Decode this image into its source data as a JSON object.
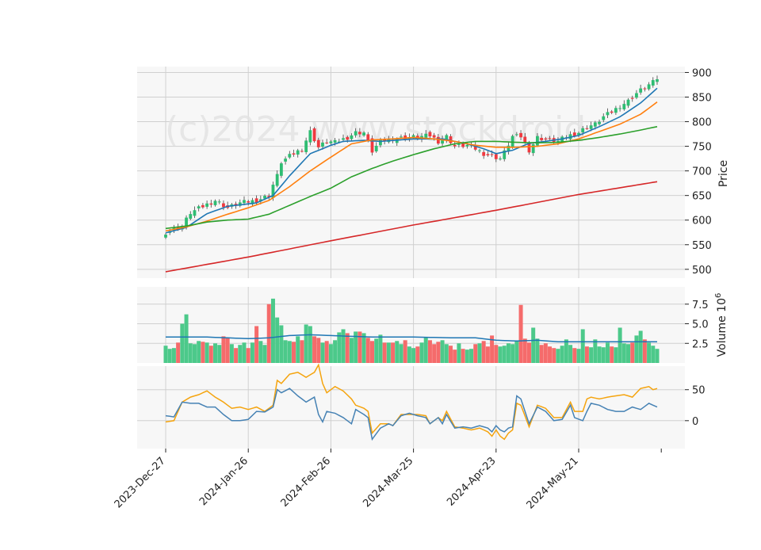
{
  "watermark": "(c)2024 www.stockdroid",
  "colors": {
    "up": "#2ebd72",
    "down": "#f0393f",
    "up_vol": "#4cc98a",
    "down_vol": "#f56b6b",
    "ma_short": "#1f77b4",
    "ma_mid": "#ff7f0e",
    "ma_long": "#2ca02c",
    "ma_200": "#d62728",
    "vol_ma": "#1f77b4",
    "osc1": "#4682b4",
    "osc2": "#f5a40e",
    "panel_bg": "#f7f7f7",
    "grid": "#d0d0d0"
  },
  "chart_data": {
    "type": "candlestick",
    "x_tick_labels": [
      "2023-Dec-27",
      "2024-Jan-26",
      "2024-Feb-26",
      "2024-Mar-25",
      "2024-Apr-23",
      "2024-May-21"
    ],
    "x_tick_index": [
      0,
      20,
      40,
      60,
      80,
      100
    ],
    "num_bars": 120,
    "price_panel": {
      "ylabel": "Price",
      "ylim": [
        482,
        912
      ],
      "yticks": [
        500,
        550,
        600,
        650,
        700,
        750,
        800,
        850,
        900
      ],
      "close_anchors": [
        [
          0,
          575
        ],
        [
          4,
          588
        ],
        [
          6,
          615
        ],
        [
          10,
          632
        ],
        [
          12,
          640
        ],
        [
          15,
          625
        ],
        [
          18,
          635
        ],
        [
          22,
          640
        ],
        [
          25,
          650
        ],
        [
          26,
          672
        ],
        [
          27,
          690
        ],
        [
          28,
          718
        ],
        [
          30,
          730
        ],
        [
          33,
          745
        ],
        [
          35,
          780
        ],
        [
          37,
          748
        ],
        [
          39,
          760
        ],
        [
          41,
          758
        ],
        [
          44,
          768
        ],
        [
          46,
          778
        ],
        [
          48,
          778
        ],
        [
          50,
          740
        ],
        [
          52,
          760
        ],
        [
          55,
          765
        ],
        [
          58,
          768
        ],
        [
          62,
          770
        ],
        [
          64,
          772
        ],
        [
          66,
          760
        ],
        [
          68,
          770
        ],
        [
          70,
          750
        ],
        [
          73,
          752
        ],
        [
          75,
          745
        ],
        [
          77,
          735
        ],
        [
          79,
          730
        ],
        [
          81,
          725
        ],
        [
          82,
          738
        ],
        [
          84,
          770
        ],
        [
          86,
          770
        ],
        [
          88,
          742
        ],
        [
          90,
          768
        ],
        [
          93,
          762
        ],
        [
          95,
          760
        ],
        [
          97,
          770
        ],
        [
          100,
          778
        ],
        [
          102,
          790
        ],
        [
          104,
          795
        ],
        [
          106,
          810
        ],
        [
          108,
          820
        ],
        [
          110,
          832
        ],
        [
          112,
          842
        ],
        [
          114,
          858
        ],
        [
          116,
          870
        ],
        [
          118,
          880
        ],
        [
          119,
          888
        ]
      ],
      "ma_series": [
        {
          "name": "ma_short",
          "anchors": [
            [
              0,
              574
            ],
            [
              5,
              585
            ],
            [
              10,
              613
            ],
            [
              15,
              628
            ],
            [
              22,
              635
            ],
            [
              26,
              650
            ],
            [
              30,
              690
            ],
            [
              35,
              735
            ],
            [
              40,
              752
            ],
            [
              43,
              760
            ],
            [
              48,
              762
            ],
            [
              52,
              760
            ],
            [
              60,
              765
            ],
            [
              67,
              765
            ],
            [
              73,
              755
            ],
            [
              77,
              745
            ],
            [
              80,
              735
            ],
            [
              84,
              742
            ],
            [
              88,
              756
            ],
            [
              92,
              760
            ],
            [
              96,
              765
            ],
            [
              100,
              772
            ],
            [
              105,
              790
            ],
            [
              110,
              810
            ],
            [
              115,
              838
            ],
            [
              119,
              868
            ]
          ]
        },
        {
          "name": "ma_mid",
          "anchors": [
            [
              0,
              578
            ],
            [
              5,
              586
            ],
            [
              10,
              598
            ],
            [
              15,
              612
            ],
            [
              20,
              625
            ],
            [
              25,
              640
            ],
            [
              30,
              668
            ],
            [
              35,
              700
            ],
            [
              40,
              728
            ],
            [
              45,
              755
            ],
            [
              50,
              763
            ],
            [
              55,
              765
            ],
            [
              60,
              768
            ],
            [
              65,
              765
            ],
            [
              70,
              760
            ],
            [
              75,
              752
            ],
            [
              80,
              748
            ],
            [
              85,
              748
            ],
            [
              90,
              750
            ],
            [
              95,
              755
            ],
            [
              100,
              765
            ],
            [
              105,
              780
            ],
            [
              110,
              795
            ],
            [
              115,
              815
            ],
            [
              119,
              840
            ]
          ]
        },
        {
          "name": "ma_long",
          "anchors": [
            [
              0,
              583
            ],
            [
              5,
              588
            ],
            [
              10,
              596
            ],
            [
              15,
              600
            ],
            [
              20,
              602
            ],
            [
              25,
              612
            ],
            [
              30,
              630
            ],
            [
              35,
              648
            ],
            [
              40,
              665
            ],
            [
              45,
              688
            ],
            [
              50,
              705
            ],
            [
              55,
              720
            ],
            [
              60,
              733
            ],
            [
              65,
              745
            ],
            [
              70,
              755
            ],
            [
              75,
              760
            ],
            [
              80,
              760
            ],
            [
              85,
              758
            ],
            [
              90,
              757
            ],
            [
              95,
              758
            ],
            [
              100,
              762
            ],
            [
              105,
              768
            ],
            [
              110,
              775
            ],
            [
              115,
              783
            ],
            [
              119,
              790
            ]
          ]
        },
        {
          "name": "ma_200",
          "anchors": [
            [
              0,
              495
            ],
            [
              20,
              525
            ],
            [
              40,
              558
            ],
            [
              60,
              590
            ],
            [
              80,
              620
            ],
            [
              100,
              652
            ],
            [
              119,
              678
            ]
          ]
        }
      ]
    },
    "volume_panel": {
      "ylabel": "Volume  10^6",
      "ylim": [
        0,
        9.7
      ],
      "yticks": [
        2.5,
        5.0,
        7.5
      ],
      "ytick_labels": [
        "2.5",
        "5.0",
        "7.5"
      ],
      "volumes": [
        2.2,
        1.8,
        1.9,
        2.6,
        5.0,
        6.2,
        2.5,
        2.4,
        2.8,
        2.7,
        2.6,
        2.2,
        2.5,
        2.3,
        3.4,
        3.2,
        2.4,
        1.9,
        2.3,
        2.6,
        1.9,
        2.6,
        4.7,
        2.8,
        2.3,
        7.5,
        8.2,
        5.8,
        4.8,
        2.9,
        2.8,
        2.7,
        3.4,
        2.9,
        4.9,
        4.7,
        3.4,
        3.2,
        2.6,
        2.8,
        2.4,
        2.9,
        3.9,
        4.3,
        3.8,
        3.2,
        4.0,
        4.0,
        3.8,
        3.2,
        2.8,
        3.1,
        3.6,
        2.6,
        2.6,
        2.6,
        2.8,
        2.4,
        2.9,
        2.1,
        1.9,
        2.1,
        2.6,
        3.3,
        2.9,
        2.4,
        2.7,
        2.9,
        2.4,
        2.2,
        1.7,
        2.5,
        1.8,
        1.7,
        1.8,
        2.4,
        2.5,
        2.8,
        2.1,
        3.5,
        2.3,
        2.1,
        2.2,
        2.5,
        2.4,
        2.8,
        7.4,
        3.1,
        2.6,
        4.5,
        3.1,
        2.3,
        2.5,
        2.1,
        1.9,
        1.8,
        2.2,
        3.0,
        2.3,
        1.9,
        1.8,
        4.3,
        2.1,
        2.0,
        3.0,
        2.1,
        2.0,
        2.6,
        2.1,
        2.0,
        4.5,
        2.5,
        2.4,
        2.6,
        3.5,
        4.1,
        3.0,
        2.6,
        2.2,
        1.8
      ],
      "vol_ma_anchors": [
        [
          0,
          3.3
        ],
        [
          10,
          3.3
        ],
        [
          20,
          3.1
        ],
        [
          25,
          3.2
        ],
        [
          30,
          3.5
        ],
        [
          35,
          3.6
        ],
        [
          40,
          3.5
        ],
        [
          45,
          3.4
        ],
        [
          50,
          3.3
        ],
        [
          60,
          3.3
        ],
        [
          70,
          3.2
        ],
        [
          75,
          3.2
        ],
        [
          80,
          2.9
        ],
        [
          85,
          2.8
        ],
        [
          90,
          2.9
        ],
        [
          95,
          2.7
        ],
        [
          100,
          2.7
        ],
        [
          110,
          2.7
        ],
        [
          119,
          2.7
        ]
      ]
    },
    "oscillator_panel": {
      "ylim": [
        -45,
        88
      ],
      "yticks": [
        0,
        50
      ],
      "series_1": [
        [
          0,
          8
        ],
        [
          2,
          6
        ],
        [
          4,
          30
        ],
        [
          6,
          28
        ],
        [
          8,
          28
        ],
        [
          10,
          22
        ],
        [
          12,
          22
        ],
        [
          14,
          10
        ],
        [
          16,
          0
        ],
        [
          18,
          0
        ],
        [
          20,
          2
        ],
        [
          22,
          15
        ],
        [
          24,
          14
        ],
        [
          26,
          22
        ],
        [
          27,
          50
        ],
        [
          28,
          45
        ],
        [
          30,
          52
        ],
        [
          32,
          40
        ],
        [
          34,
          30
        ],
        [
          36,
          38
        ],
        [
          37,
          10
        ],
        [
          38,
          -2
        ],
        [
          39,
          15
        ],
        [
          41,
          12
        ],
        [
          43,
          5
        ],
        [
          45,
          -5
        ],
        [
          46,
          18
        ],
        [
          48,
          10
        ],
        [
          49,
          5
        ],
        [
          50,
          -30
        ],
        [
          52,
          -12
        ],
        [
          54,
          -5
        ],
        [
          55,
          -8
        ],
        [
          57,
          8
        ],
        [
          59,
          12
        ],
        [
          61,
          8
        ],
        [
          63,
          5
        ],
        [
          64,
          -5
        ],
        [
          66,
          5
        ],
        [
          67,
          -5
        ],
        [
          68,
          10
        ],
        [
          70,
          -12
        ],
        [
          72,
          -10
        ],
        [
          74,
          -12
        ],
        [
          76,
          -8
        ],
        [
          78,
          -12
        ],
        [
          79,
          -18
        ],
        [
          80,
          -8
        ],
        [
          81,
          -15
        ],
        [
          82,
          -18
        ],
        [
          83,
          -12
        ],
        [
          84,
          -10
        ],
        [
          85,
          40
        ],
        [
          86,
          35
        ],
        [
          88,
          -5
        ],
        [
          90,
          22
        ],
        [
          92,
          15
        ],
        [
          94,
          0
        ],
        [
          96,
          2
        ],
        [
          98,
          25
        ],
        [
          99,
          5
        ],
        [
          101,
          0
        ],
        [
          102,
          15
        ],
        [
          103,
          28
        ],
        [
          105,
          25
        ],
        [
          107,
          18
        ],
        [
          109,
          15
        ],
        [
          111,
          15
        ],
        [
          113,
          22
        ],
        [
          115,
          18
        ],
        [
          117,
          28
        ],
        [
          118,
          25
        ],
        [
          119,
          22
        ]
      ],
      "series_2": [
        [
          0,
          -2
        ],
        [
          2,
          0
        ],
        [
          4,
          30
        ],
        [
          6,
          38
        ],
        [
          8,
          42
        ],
        [
          10,
          48
        ],
        [
          12,
          38
        ],
        [
          14,
          30
        ],
        [
          16,
          20
        ],
        [
          18,
          22
        ],
        [
          20,
          18
        ],
        [
          22,
          22
        ],
        [
          24,
          15
        ],
        [
          26,
          25
        ],
        [
          27,
          65
        ],
        [
          28,
          60
        ],
        [
          30,
          75
        ],
        [
          32,
          78
        ],
        [
          34,
          70
        ],
        [
          36,
          78
        ],
        [
          37,
          90
        ],
        [
          38,
          60
        ],
        [
          39,
          45
        ],
        [
          41,
          55
        ],
        [
          43,
          48
        ],
        [
          45,
          35
        ],
        [
          46,
          25
        ],
        [
          48,
          20
        ],
        [
          49,
          15
        ],
        [
          50,
          -20
        ],
        [
          52,
          -5
        ],
        [
          54,
          -5
        ],
        [
          55,
          -8
        ],
        [
          57,
          10
        ],
        [
          59,
          10
        ],
        [
          61,
          10
        ],
        [
          63,
          8
        ],
        [
          64,
          -5
        ],
        [
          66,
          5
        ],
        [
          67,
          0
        ],
        [
          68,
          15
        ],
        [
          70,
          -10
        ],
        [
          72,
          -12
        ],
        [
          74,
          -15
        ],
        [
          76,
          -12
        ],
        [
          78,
          -18
        ],
        [
          79,
          -25
        ],
        [
          80,
          -15
        ],
        [
          81,
          -25
        ],
        [
          82,
          -30
        ],
        [
          83,
          -20
        ],
        [
          84,
          -15
        ],
        [
          85,
          28
        ],
        [
          86,
          25
        ],
        [
          88,
          -10
        ],
        [
          90,
          25
        ],
        [
          92,
          20
        ],
        [
          94,
          5
        ],
        [
          96,
          5
        ],
        [
          98,
          30
        ],
        [
          99,
          15
        ],
        [
          101,
          15
        ],
        [
          102,
          35
        ],
        [
          103,
          38
        ],
        [
          105,
          35
        ],
        [
          107,
          38
        ],
        [
          109,
          40
        ],
        [
          111,
          42
        ],
        [
          113,
          38
        ],
        [
          115,
          52
        ],
        [
          117,
          55
        ],
        [
          118,
          50
        ],
        [
          119,
          52
        ]
      ]
    }
  }
}
